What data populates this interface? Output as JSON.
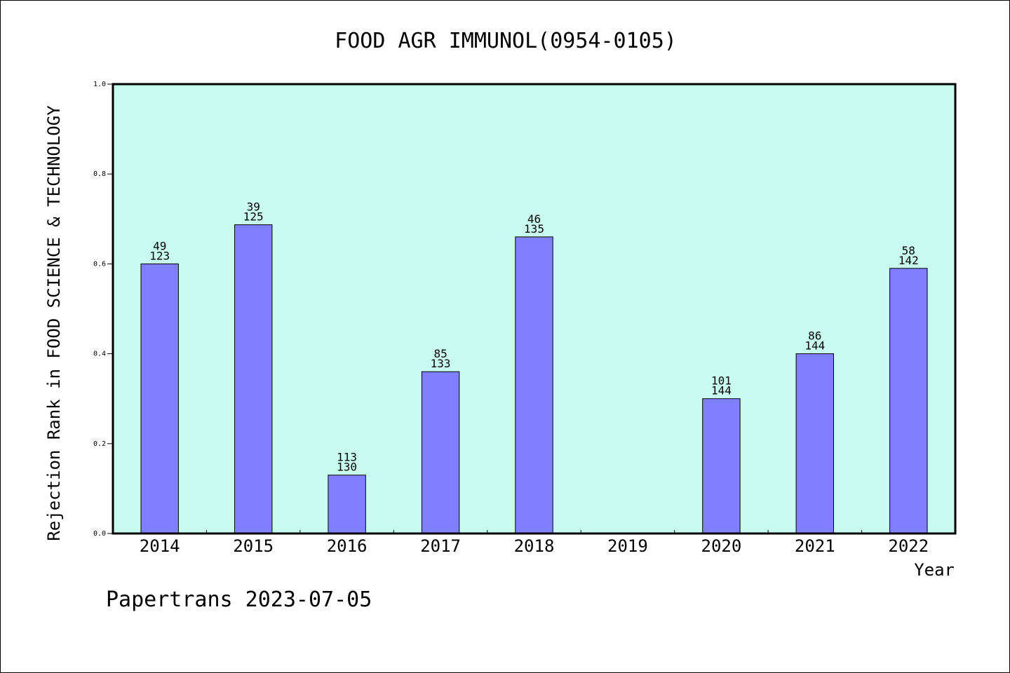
{
  "chart_data": {
    "type": "bar",
    "title": "FOOD AGR IMMUNOL(0954-0105)",
    "xlabel": "Year",
    "ylabel": "Rejection Rank in FOOD SCIENCE & TECHNOLOGY",
    "ylim": [
      0,
      1.0
    ],
    "yticks": [
      0.0,
      0.2,
      0.4,
      0.6,
      0.8,
      1.0
    ],
    "ytick_labels": [
      "0.0",
      "0.2",
      "0.4",
      "0.6",
      "0.8",
      "1.0"
    ],
    "grid": false,
    "categories": [
      "2014",
      "2015",
      "2016",
      "2017",
      "2018",
      "2019",
      "2020",
      "2021",
      "2022"
    ],
    "values": [
      0.6,
      0.687,
      0.13,
      0.36,
      0.66,
      null,
      0.3,
      0.4,
      0.59
    ],
    "labels_top": [
      "49",
      "39",
      "113",
      "85",
      "46",
      "",
      "101",
      "86",
      "58"
    ],
    "labels_bottom": [
      "123",
      "125",
      "130",
      "133",
      "135",
      "",
      "144",
      "144",
      "142"
    ],
    "colors": {
      "plot_background": "#c8fcf0",
      "bar_fill": "#8080ff",
      "bar_stroke": "#000000"
    }
  },
  "footer": {
    "text": "Papertrans 2023-07-05"
  }
}
